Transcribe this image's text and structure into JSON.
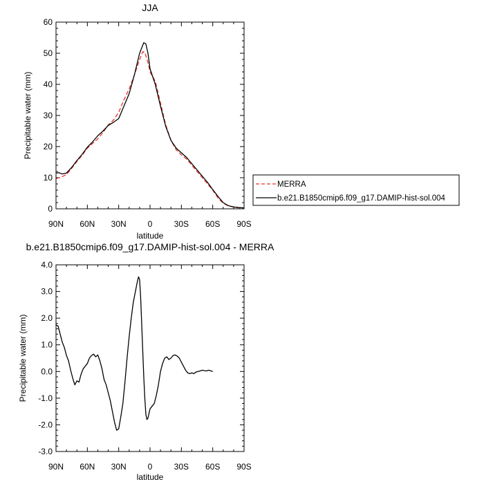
{
  "chart_data": [
    {
      "type": "line",
      "title": "JJA",
      "xlabel": "latitude",
      "ylabel": "Precipitable water (mm)",
      "xlim": [
        90,
        -90
      ],
      "ylim": [
        0,
        60
      ],
      "x_ticks": [
        90,
        60,
        30,
        0,
        -30,
        -60,
        -90
      ],
      "x_tick_labels": [
        "90N",
        "60N",
        "30N",
        "0",
        "30S",
        "60S",
        "90S"
      ],
      "y_ticks": [
        0,
        10,
        20,
        30,
        40,
        50,
        60
      ],
      "y_tick_labels": [
        "0",
        "10",
        "20",
        "30",
        "40",
        "50",
        "60"
      ],
      "grid": false,
      "legend_position": "right, outside plot",
      "series": [
        {
          "name": "MERRA",
          "color": "#e8332a",
          "dash": "dashed",
          "points": [
            [
              90,
              9.7
            ],
            [
              85,
              10.2
            ],
            [
              80,
              11
            ],
            [
              75,
              13
            ],
            [
              70,
              15.2
            ],
            [
              65,
              17.2
            ],
            [
              60,
              19.5
            ],
            [
              55,
              21
            ],
            [
              50,
              22.5
            ],
            [
              45,
              24.5
            ],
            [
              40,
              27
            ],
            [
              35,
              28.5
            ],
            [
              30,
              31
            ],
            [
              25,
              35
            ],
            [
              20,
              38.5
            ],
            [
              15,
              43
            ],
            [
              10,
              48
            ],
            [
              7,
              50.5
            ],
            [
              5,
              50.3
            ],
            [
              2,
              47
            ],
            [
              0,
              44
            ],
            [
              -5,
              41
            ],
            [
              -10,
              34
            ],
            [
              -15,
              27
            ],
            [
              -20,
              22
            ],
            [
              -25,
              19
            ],
            [
              -30,
              17.3
            ],
            [
              -35,
              16
            ],
            [
              -40,
              14
            ],
            [
              -45,
              12
            ],
            [
              -50,
              10
            ],
            [
              -55,
              8
            ],
            [
              -60,
              6
            ],
            [
              -65,
              3.5
            ],
            [
              -70,
              1.8
            ],
            [
              -75,
              0.9
            ],
            [
              -80,
              0.6
            ],
            [
              -85,
              0.3
            ],
            [
              -90,
              0.3
            ]
          ]
        },
        {
          "name": "b.e21.B1850cmip6.f09_g17.DAMIP-hist-sol.004",
          "color": "#000000",
          "dash": "solid",
          "points": [
            [
              90,
              11.5
            ],
            [
              87,
              11.6
            ],
            [
              84,
              11.2
            ],
            [
              80,
              11.5
            ],
            [
              75,
              13.3
            ],
            [
              70,
              15.5
            ],
            [
              65,
              17.5
            ],
            [
              60,
              19.8
            ],
            [
              55,
              21.5
            ],
            [
              50,
              23.5
            ],
            [
              45,
              25
            ],
            [
              40,
              26.8
            ],
            [
              35,
              27.8
            ],
            [
              30,
              29
            ],
            [
              25,
              33
            ],
            [
              20,
              37
            ],
            [
              15,
              43
            ],
            [
              10,
              50
            ],
            [
              6,
              53.4
            ],
            [
              4,
              53
            ],
            [
              2,
              50
            ],
            [
              0,
              45
            ],
            [
              -5,
              40
            ],
            [
              -10,
              33
            ],
            [
              -15,
              26.5
            ],
            [
              -20,
              22
            ],
            [
              -25,
              19.5
            ],
            [
              -30,
              18
            ],
            [
              -35,
              16.5
            ],
            [
              -40,
              14.5
            ],
            [
              -45,
              12.5
            ],
            [
              -50,
              10.5
            ],
            [
              -55,
              8.5
            ],
            [
              -60,
              6.2
            ],
            [
              -65,
              4
            ],
            [
              -70,
              2
            ],
            [
              -75,
              1
            ],
            [
              -80,
              0.6
            ],
            [
              -85,
              0.4
            ],
            [
              -90,
              0.3
            ]
          ]
        }
      ]
    },
    {
      "type": "line",
      "title": "b.e21.B1850cmip6.f09_g17.DAMIP-hist-sol.004 - MERRA",
      "xlabel": "latitude",
      "ylabel": "Precipitable water (mm)",
      "xlim": [
        90,
        -90
      ],
      "ylim": [
        -3,
        4
      ],
      "x_ticks": [
        90,
        60,
        30,
        0,
        -30,
        -60,
        -90
      ],
      "x_tick_labels": [
        "90N",
        "60N",
        "30N",
        "0",
        "30S",
        "60S",
        "90S"
      ],
      "y_ticks": [
        -3,
        -2,
        -1,
        0,
        1,
        2,
        3,
        4
      ],
      "y_tick_labels": [
        "-3.0",
        "-2.0",
        "-1.0",
        "0.0",
        "1.0",
        "2.0",
        "3.0",
        "4.0"
      ],
      "grid": false,
      "series": [
        {
          "color": "#000000",
          "dash": "solid",
          "points": [
            [
              90,
              1.75
            ],
            [
              88,
              1.7
            ],
            [
              86,
              1.4
            ],
            [
              84,
              1.1
            ],
            [
              82,
              0.9
            ],
            [
              80,
              0.6
            ],
            [
              78,
              0.4
            ],
            [
              76,
              0.05
            ],
            [
              74,
              -0.25
            ],
            [
              72,
              -0.5
            ],
            [
              70,
              -0.35
            ],
            [
              68,
              -0.4
            ],
            [
              66,
              -0.1
            ],
            [
              64,
              0.1
            ],
            [
              62,
              0.2
            ],
            [
              60,
              0.3
            ],
            [
              58,
              0.5
            ],
            [
              56,
              0.6
            ],
            [
              54,
              0.65
            ],
            [
              52,
              0.55
            ],
            [
              50,
              0.62
            ],
            [
              48,
              0.4
            ],
            [
              46,
              0.1
            ],
            [
              44,
              -0.3
            ],
            [
              42,
              -0.5
            ],
            [
              40,
              -0.8
            ],
            [
              38,
              -1.1
            ],
            [
              36,
              -1.5
            ],
            [
              34,
              -1.9
            ],
            [
              32,
              -2.2
            ],
            [
              30,
              -2.15
            ],
            [
              28,
              -1.7
            ],
            [
              26,
              -1.2
            ],
            [
              24,
              -0.4
            ],
            [
              22,
              0.5
            ],
            [
              20,
              1.3
            ],
            [
              18,
              2.0
            ],
            [
              16,
              2.6
            ],
            [
              14,
              3.0
            ],
            [
              12,
              3.4
            ],
            [
              11,
              3.55
            ],
            [
              10,
              3.45
            ],
            [
              9,
              2.8
            ],
            [
              8,
              1.8
            ],
            [
              7,
              0.8
            ],
            [
              6,
              -0.2
            ],
            [
              5,
              -1.0
            ],
            [
              4,
              -1.6
            ],
            [
              3,
              -1.8
            ],
            [
              2,
              -1.75
            ],
            [
              0,
              -1.4
            ],
            [
              -2,
              -1.3
            ],
            [
              -4,
              -1.2
            ],
            [
              -6,
              -0.9
            ],
            [
              -8,
              -0.5
            ],
            [
              -10,
              0.0
            ],
            [
              -12,
              0.3
            ],
            [
              -14,
              0.5
            ],
            [
              -16,
              0.55
            ],
            [
              -18,
              0.45
            ],
            [
              -20,
              0.5
            ],
            [
              -22,
              0.6
            ],
            [
              -24,
              0.62
            ],
            [
              -26,
              0.58
            ],
            [
              -28,
              0.5
            ],
            [
              -30,
              0.35
            ],
            [
              -32,
              0.2
            ],
            [
              -34,
              0.05
            ],
            [
              -36,
              -0.05
            ],
            [
              -38,
              -0.08
            ],
            [
              -40,
              -0.05
            ],
            [
              -42,
              -0.08
            ],
            [
              -44,
              -0.02
            ],
            [
              -46,
              0.0
            ],
            [
              -48,
              0.02
            ],
            [
              -50,
              0.05
            ],
            [
              -52,
              0.03
            ],
            [
              -54,
              0.02
            ],
            [
              -56,
              0.05
            ],
            [
              -60,
              0.0
            ]
          ]
        }
      ]
    }
  ]
}
